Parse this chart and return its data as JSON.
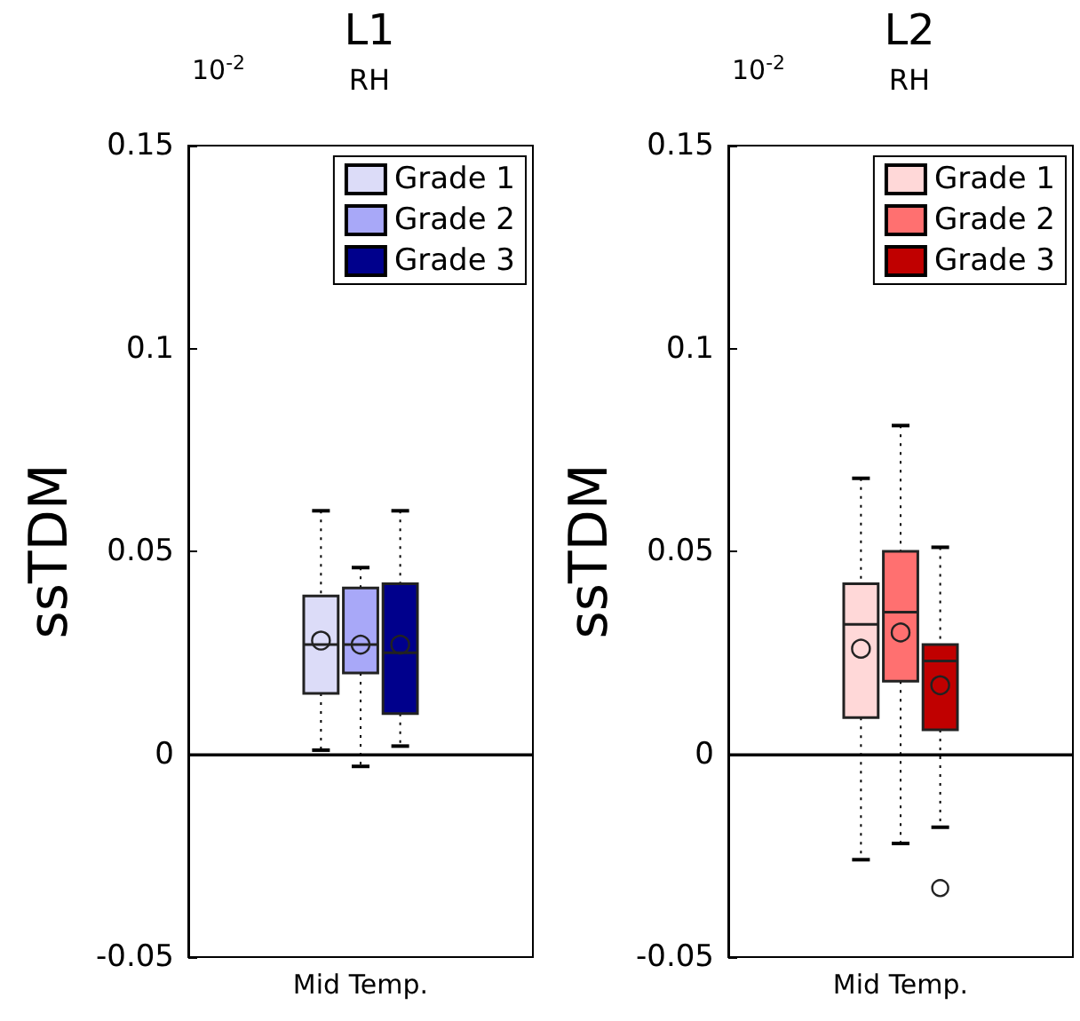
{
  "chart_data": [
    {
      "type": "box",
      "title": "L1",
      "subtitle": "RH",
      "ylabel": "ssTDM",
      "annotations": [
        "10$^{-2}$"
      ],
      "categories": [
        "Mid Temp."
      ],
      "ylim": [
        -0.05,
        0.15
      ],
      "yticks": [
        -0.05,
        0,
        0.05,
        0.1,
        0.15
      ],
      "legend": "top right",
      "ref_lines": [
        {
          "axis": "y",
          "value": 0
        }
      ],
      "series": [
        {
          "name": "Grade 1",
          "color": "#dcdcf8",
          "boxes": [
            {
              "low": 0.001,
              "q1": 0.015,
              "median": 0.027,
              "q3": 0.039,
              "high": 0.06,
              "mean": 0.028
            }
          ]
        },
        {
          "name": "Grade 2",
          "color": "#a8a8f8",
          "boxes": [
            {
              "low": -0.003,
              "q1": 0.02,
              "median": 0.027,
              "q3": 0.041,
              "high": 0.046,
              "mean": 0.027
            }
          ]
        },
        {
          "name": "Grade 3",
          "color": "#00008c",
          "boxes": [
            {
              "low": 0.002,
              "q1": 0.01,
              "median": 0.025,
              "q3": 0.042,
              "high": 0.06,
              "mean": 0.027
            }
          ]
        }
      ]
    },
    {
      "type": "box",
      "title": "L2",
      "subtitle": "RH",
      "ylabel": "ssTDM",
      "annotations": [
        "10$^{-2}$"
      ],
      "categories": [
        "Mid Temp."
      ],
      "ylim": [
        -0.05,
        0.15
      ],
      "yticks": [
        -0.05,
        0,
        0.05,
        0.1,
        0.15
      ],
      "legend": "top right",
      "ref_lines": [
        {
          "axis": "y",
          "value": 0
        }
      ],
      "series": [
        {
          "name": "Grade 1",
          "color": "#ffd8d8",
          "boxes": [
            {
              "low": -0.026,
              "q1": 0.009,
              "median": 0.032,
              "q3": 0.042,
              "high": 0.068,
              "mean": 0.026
            }
          ]
        },
        {
          "name": "Grade 2",
          "color": "#ff7070",
          "boxes": [
            {
              "low": -0.022,
              "q1": 0.018,
              "median": 0.035,
              "q3": 0.05,
              "high": 0.081,
              "mean": 0.03
            }
          ]
        },
        {
          "name": "Grade 3",
          "color": "#c00000",
          "boxes": [
            {
              "low": -0.018,
              "q1": 0.006,
              "median": 0.023,
              "q3": 0.027,
              "high": 0.051,
              "mean": 0.017,
              "outliers": [
                -0.033
              ]
            }
          ]
        }
      ]
    }
  ]
}
